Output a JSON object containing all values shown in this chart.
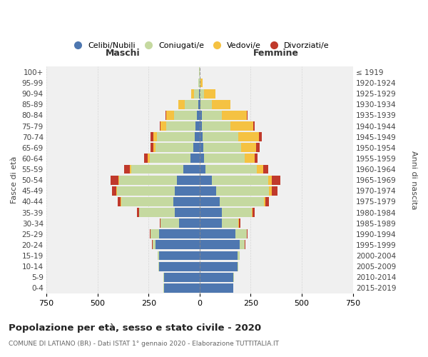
{
  "age_groups": [
    "0-4",
    "5-9",
    "10-14",
    "15-19",
    "20-24",
    "25-29",
    "30-34",
    "35-39",
    "40-44",
    "45-49",
    "50-54",
    "55-59",
    "60-64",
    "65-69",
    "70-74",
    "75-79",
    "80-84",
    "85-89",
    "90-94",
    "95-99",
    "100+"
  ],
  "birth_years": [
    "2015-2019",
    "2010-2014",
    "2005-2009",
    "2000-2004",
    "1995-1999",
    "1990-1994",
    "1985-1989",
    "1980-1984",
    "1975-1979",
    "1970-1974",
    "1965-1969",
    "1960-1964",
    "1955-1959",
    "1950-1954",
    "1945-1949",
    "1940-1944",
    "1935-1939",
    "1930-1934",
    "1925-1929",
    "1920-1924",
    "≤ 1919"
  ],
  "male": {
    "celibe": [
      175,
      175,
      200,
      200,
      215,
      200,
      100,
      120,
      130,
      120,
      110,
      80,
      45,
      30,
      25,
      20,
      15,
      8,
      2,
      0,
      0
    ],
    "coniugato": [
      1,
      1,
      2,
      5,
      15,
      40,
      90,
      175,
      255,
      285,
      285,
      255,
      200,
      185,
      185,
      145,
      110,
      65,
      25,
      5,
      2
    ],
    "vedovo": [
      0,
      0,
      0,
      0,
      1,
      1,
      1,
      1,
      2,
      3,
      4,
      5,
      8,
      10,
      15,
      25,
      40,
      30,
      15,
      2,
      0
    ],
    "divorziato": [
      0,
      0,
      0,
      1,
      2,
      3,
      5,
      10,
      15,
      20,
      35,
      30,
      20,
      15,
      15,
      5,
      2,
      2,
      0,
      0,
      0
    ]
  },
  "female": {
    "nubile": [
      165,
      165,
      185,
      185,
      195,
      175,
      110,
      110,
      100,
      80,
      60,
      30,
      20,
      18,
      15,
      12,
      10,
      5,
      2,
      0,
      0
    ],
    "coniugata": [
      1,
      2,
      4,
      10,
      25,
      55,
      80,
      145,
      215,
      260,
      275,
      250,
      200,
      185,
      175,
      140,
      100,
      55,
      20,
      3,
      0
    ],
    "vedova": [
      0,
      0,
      0,
      0,
      1,
      2,
      3,
      5,
      8,
      15,
      20,
      30,
      50,
      75,
      100,
      110,
      120,
      90,
      55,
      10,
      2
    ],
    "divorziata": [
      0,
      0,
      0,
      1,
      2,
      3,
      5,
      10,
      15,
      25,
      40,
      25,
      15,
      15,
      15,
      8,
      5,
      2,
      0,
      0,
      0
    ]
  },
  "colors": {
    "celibe": "#4e77b0",
    "coniugato": "#c5d9a0",
    "vedovo": "#f5c242",
    "divorziato": "#c0392b"
  },
  "xlim": 750,
  "title": "Popolazione per età, sesso e stato civile - 2020",
  "subtitle": "COMUNE DI LATIANO (BR) - Dati ISTAT 1° gennaio 2020 - Elaborazione TUTTITALIA.IT",
  "ylabel_left": "Fasce di età",
  "ylabel_right": "Anni di nascita",
  "xlabel_left": "Maschi",
  "xlabel_right": "Femmine",
  "bg_color": "#f0f0f0",
  "bar_height": 0.85
}
